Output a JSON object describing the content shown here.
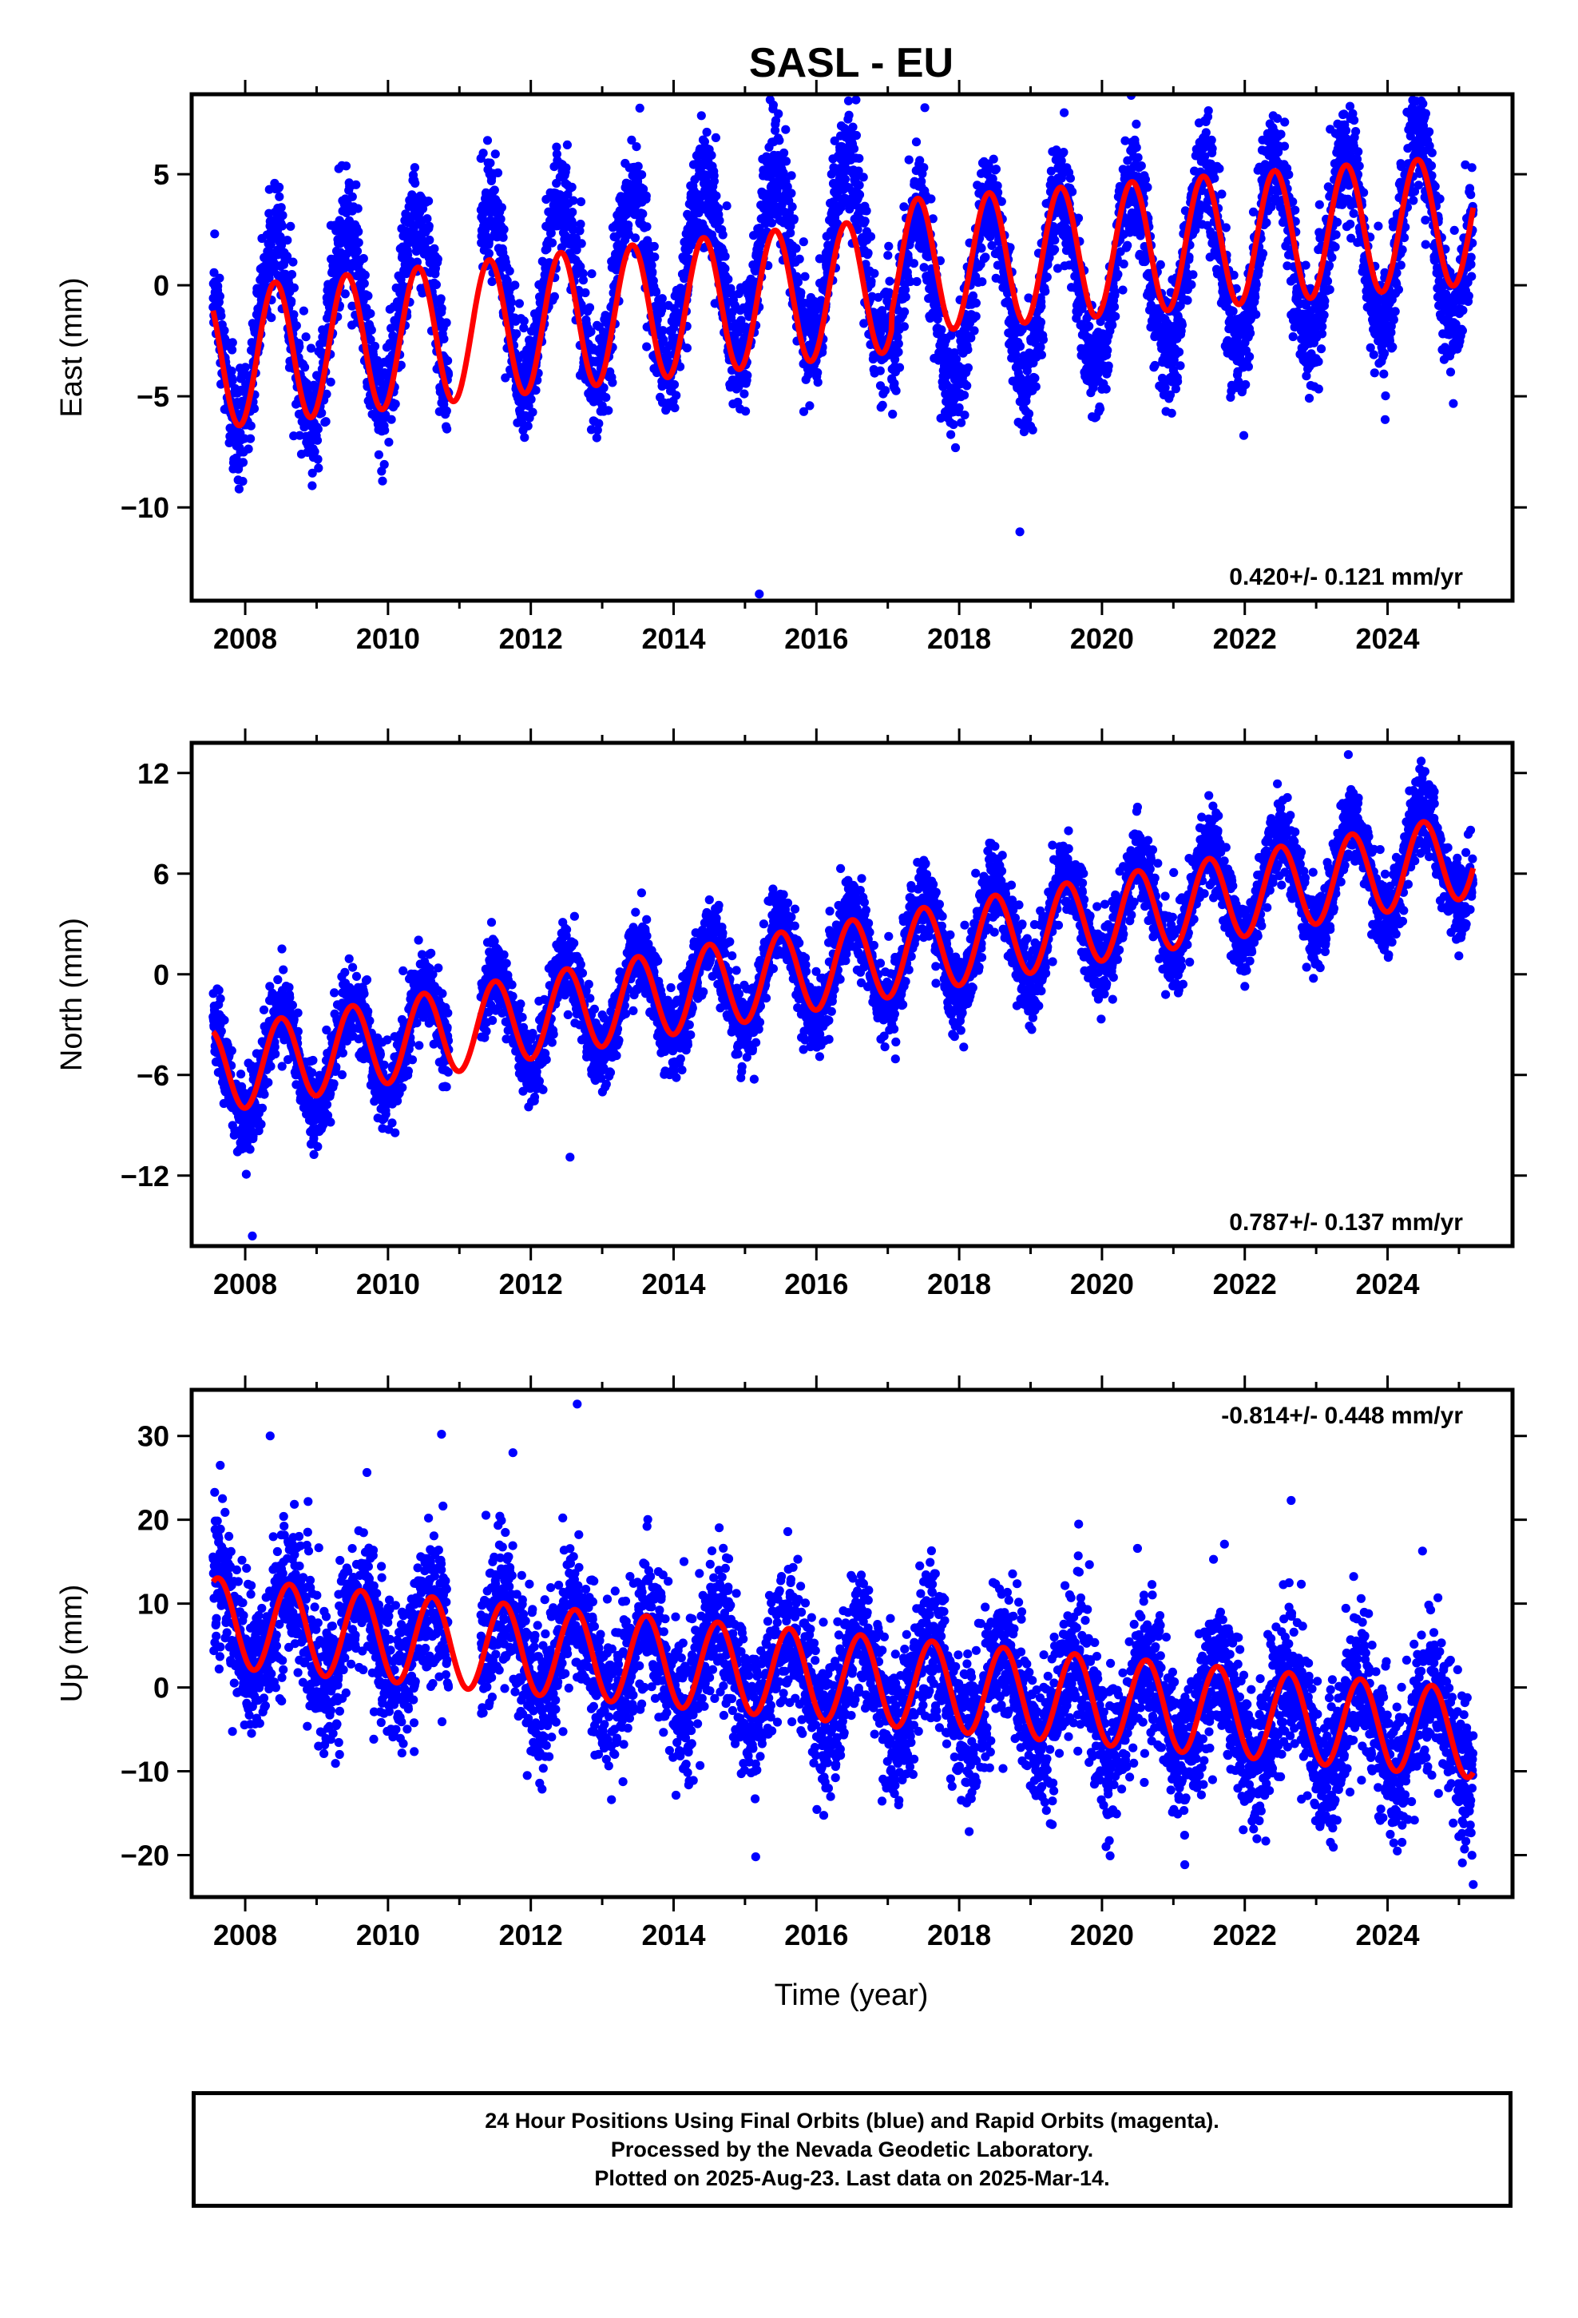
{
  "figure": {
    "title": "SASL - EU",
    "x_axis_label": "Time (year)",
    "caption_lines": [
      "24 Hour Positions Using Final Orbits (blue) and Rapid Orbits (magenta).",
      "Processed by the Nevada Geodetic Laboratory.",
      "Plotted on 2025-Aug-23. Last data on 2025-Mar-14."
    ],
    "colors": {
      "final_orbits": "#0000ff",
      "model_fit": "#ff0000",
      "frame": "#000000"
    }
  },
  "chart_data": [
    {
      "type": "scatter",
      "ylabel": "East (mm)",
      "rate_label": "0.420+/- 0.121 mm/yr",
      "rate_label_position": "bottom-right",
      "xlim": [
        2007.25,
        2025.75
      ],
      "ylim": [
        -14.2,
        8.6
      ],
      "x_ticks": [
        2008,
        2010,
        2012,
        2014,
        2016,
        2018,
        2020,
        2022,
        2024
      ],
      "x_tick_labels": [
        "2008",
        "2010",
        "2012",
        "2014",
        "2016",
        "2018",
        "2020",
        "2022",
        "2024"
      ],
      "y_ticks": [
        5,
        0,
        -5,
        -10
      ],
      "y_tick_labels": [
        "5",
        "0",
        "−5",
        "−10"
      ],
      "data_range": [
        2007.55,
        2025.2
      ],
      "data_gap": [
        2010.85,
        2011.3
      ],
      "series": [
        {
          "style": "points",
          "color": "#0000ff",
          "trend_segments": [
            {
              "from": 2007.55,
              "to": 2017.05,
              "start": -2.5,
              "end": 1.8
            },
            {
              "from": 2017.05,
              "to": 2025.2,
              "start": -1.0,
              "end": 2.8
            }
          ],
          "annual_amplitude": 4.2,
          "scatter_sd": 1.25,
          "outliers": [
            [
              2018.85,
              -11.1
            ],
            [
              2015.2,
              -13.9
            ],
            [
              2016.45,
              8.3
            ]
          ]
        },
        {
          "style": "line",
          "color": "#ff0000",
          "model": "trend + annual",
          "trend_segments": [
            {
              "from": 2007.55,
              "to": 2017.05,
              "start": -3.3,
              "end": 0.0
            },
            {
              "from": 2017.05,
              "to": 2025.2,
              "start": 0.8,
              "end": 2.95
            }
          ],
          "annual_amplitude": [
            3.15,
            2.9
          ],
          "crest_phase": 0.42
        }
      ]
    },
    {
      "type": "scatter",
      "ylabel": "North (mm)",
      "rate_label": "0.787+/- 0.137 mm/yr",
      "rate_label_position": "bottom-right",
      "xlim": [
        2007.25,
        2025.75
      ],
      "ylim": [
        -16.2,
        13.8
      ],
      "x_ticks": [
        2008,
        2010,
        2012,
        2014,
        2016,
        2018,
        2020,
        2022,
        2024
      ],
      "x_tick_labels": [
        "2008",
        "2010",
        "2012",
        "2014",
        "2016",
        "2018",
        "2020",
        "2022",
        "2024"
      ],
      "y_ticks": [
        12,
        6,
        0,
        -6,
        -12
      ],
      "y_tick_labels": [
        "12",
        "6",
        "0",
        "−6",
        "−12"
      ],
      "data_range": [
        2007.55,
        2025.2
      ],
      "data_gap": [
        2010.85,
        2011.3
      ],
      "series": [
        {
          "style": "points",
          "color": "#0000ff",
          "trend_segments": [
            {
              "from": 2007.55,
              "to": 2025.2,
              "start": -6.0,
              "end": 7.3
            }
          ],
          "annual_amplitude": 3.0,
          "scatter_sd": 1.15,
          "outliers": [
            [
              2008.1,
              -15.6
            ],
            [
              2011.45,
              3.1
            ],
            [
              2012.55,
              -10.9
            ],
            [
              2023.45,
              13.1
            ]
          ]
        },
        {
          "style": "line",
          "color": "#ff0000",
          "model": "trend + annual",
          "trend_segments": [
            {
              "from": 2007.55,
              "to": 2025.2,
              "start": -5.8,
              "end": 7.1
            }
          ],
          "annual_amplitude": [
            2.5,
            2.5
          ],
          "crest_phase": 0.5
        }
      ]
    },
    {
      "type": "scatter",
      "ylabel": "Up (mm)",
      "rate_label": "-0.814+/- 0.448 mm/yr",
      "rate_label_position": "top-right",
      "xlim": [
        2007.25,
        2025.75
      ],
      "ylim": [
        -25,
        35.5
      ],
      "x_ticks": [
        2008,
        2010,
        2012,
        2014,
        2016,
        2018,
        2020,
        2022,
        2024
      ],
      "x_tick_labels": [
        "2008",
        "2010",
        "2012",
        "2014",
        "2016",
        "2018",
        "2020",
        "2022",
        "2024"
      ],
      "y_ticks": [
        30,
        20,
        10,
        0,
        -10,
        -20
      ],
      "y_tick_labels": [
        "30",
        "20",
        "10",
        "0",
        "−10",
        "−20"
      ],
      "data_range": [
        2007.55,
        2025.2
      ],
      "data_gap": [
        2010.85,
        2011.3
      ],
      "series": [
        {
          "style": "points",
          "color": "#0000ff",
          "trend_segments": [
            {
              "from": 2007.55,
              "to": 2025.2,
              "start": 7.5,
              "end": -6.0
            }
          ],
          "annual_amplitude": 5.5,
          "scatter_sd": 4.2,
          "outliers": [
            [
              2007.65,
              26.5
            ],
            [
              2008.35,
              30.0
            ],
            [
              2010.75,
              30.2
            ],
            [
              2011.75,
              28.0
            ],
            [
              2012.65,
              33.8
            ],
            [
              2015.15,
              -20.2
            ],
            [
              2022.65,
              22.3
            ],
            [
              2025.2,
              -23.5
            ]
          ]
        },
        {
          "style": "line",
          "color": "#ff0000",
          "model": "trend + annual",
          "trend_segments": [
            {
              "from": 2007.55,
              "to": 2025.2,
              "start": 7.8,
              "end": -5.5
            }
          ],
          "annual_amplitude": [
            5.3,
            5.3
          ],
          "crest_phase": 0.62
        }
      ]
    }
  ]
}
